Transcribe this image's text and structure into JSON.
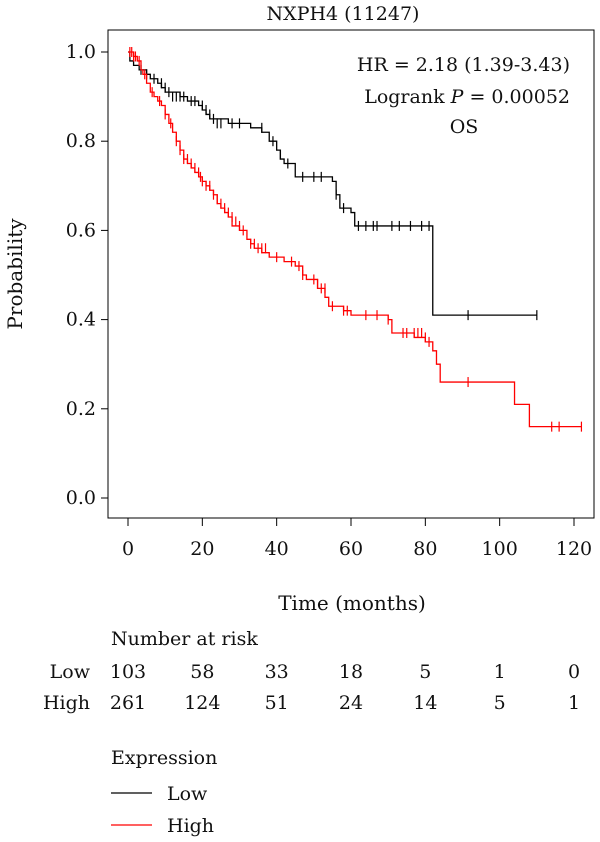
{
  "chart_data": {
    "type": "line",
    "title": "NXPH4 (11247)",
    "xlabel": "Time (months)",
    "ylabel": "Probability",
    "xlim": [
      0,
      125
    ],
    "ylim": [
      0,
      1.0
    ],
    "xticks": [
      0,
      20,
      40,
      60,
      80,
      100,
      120
    ],
    "yticks": [
      "0.0",
      "0.2",
      "0.4",
      "0.6",
      "0.8",
      "1.0"
    ],
    "grid": false,
    "annotations": {
      "hr": "HR = 2.18 (1.39-3.43)",
      "logrank_prefix": "Logrank ",
      "logrank_p": "P",
      "logrank_value": " = 0.00052",
      "endpoint": "OS"
    },
    "series": [
      {
        "name": "Low",
        "color": "#000000",
        "steps": [
          [
            0,
            1.0
          ],
          [
            0.5,
            0.98
          ],
          [
            1.5,
            0.97
          ],
          [
            3,
            0.96
          ],
          [
            5,
            0.95
          ],
          [
            6,
            0.94
          ],
          [
            8,
            0.93
          ],
          [
            9,
            0.92
          ],
          [
            10,
            0.91
          ],
          [
            14,
            0.9
          ],
          [
            16,
            0.89
          ],
          [
            19,
            0.88
          ],
          [
            20,
            0.87
          ],
          [
            21,
            0.86
          ],
          [
            22,
            0.85
          ],
          [
            27,
            0.84
          ],
          [
            33,
            0.83
          ],
          [
            36,
            0.82
          ],
          [
            38,
            0.8
          ],
          [
            40,
            0.78
          ],
          [
            41,
            0.76
          ],
          [
            42,
            0.75
          ],
          [
            45,
            0.72
          ],
          [
            55,
            0.71
          ],
          [
            56,
            0.68
          ],
          [
            57,
            0.65
          ],
          [
            60,
            0.64
          ],
          [
            61,
            0.61
          ],
          [
            82,
            0.41
          ],
          [
            110,
            0.41
          ]
        ],
        "censors": [
          [
            3.5,
            0.96
          ],
          [
            5,
            0.95
          ],
          [
            7,
            0.94
          ],
          [
            9,
            0.93
          ],
          [
            10,
            0.92
          ],
          [
            11,
            0.91
          ],
          [
            12,
            0.9
          ],
          [
            13,
            0.9
          ],
          [
            14,
            0.9
          ],
          [
            15,
            0.9
          ],
          [
            17,
            0.89
          ],
          [
            18,
            0.89
          ],
          [
            20,
            0.88
          ],
          [
            21,
            0.87
          ],
          [
            22,
            0.86
          ],
          [
            23,
            0.85
          ],
          [
            24,
            0.84
          ],
          [
            25,
            0.84
          ],
          [
            28,
            0.84
          ],
          [
            30,
            0.84
          ],
          [
            36,
            0.83
          ],
          [
            39,
            0.8
          ],
          [
            41,
            0.77
          ],
          [
            43,
            0.75
          ],
          [
            47,
            0.72
          ],
          [
            50,
            0.72
          ],
          [
            52,
            0.72
          ],
          [
            56,
            0.68
          ],
          [
            58,
            0.65
          ],
          [
            62,
            0.61
          ],
          [
            64,
            0.61
          ],
          [
            66,
            0.61
          ],
          [
            67,
            0.61
          ],
          [
            71,
            0.61
          ],
          [
            73,
            0.61
          ],
          [
            76,
            0.61
          ],
          [
            79,
            0.61
          ],
          [
            81,
            0.61
          ],
          [
            91.5,
            0.41
          ],
          [
            110,
            0.41
          ]
        ]
      },
      {
        "name": "High",
        "color": "#ff0000",
        "steps": [
          [
            0,
            1.0
          ],
          [
            1.5,
            0.99
          ],
          [
            2.5,
            0.98
          ],
          [
            3.5,
            0.96
          ],
          [
            4,
            0.95
          ],
          [
            5,
            0.93
          ],
          [
            6,
            0.91
          ],
          [
            7,
            0.9
          ],
          [
            8,
            0.89
          ],
          [
            9,
            0.88
          ],
          [
            10,
            0.86
          ],
          [
            11,
            0.84
          ],
          [
            12,
            0.82
          ],
          [
            13,
            0.8
          ],
          [
            14,
            0.78
          ],
          [
            15,
            0.76
          ],
          [
            16,
            0.75
          ],
          [
            17,
            0.74
          ],
          [
            18,
            0.73
          ],
          [
            19,
            0.72
          ],
          [
            20,
            0.71
          ],
          [
            21,
            0.7
          ],
          [
            22,
            0.69
          ],
          [
            23,
            0.68
          ],
          [
            24,
            0.66
          ],
          [
            25,
            0.65
          ],
          [
            26,
            0.64
          ],
          [
            27,
            0.63
          ],
          [
            28,
            0.61
          ],
          [
            30,
            0.6
          ],
          [
            32,
            0.58
          ],
          [
            33,
            0.57
          ],
          [
            34,
            0.56
          ],
          [
            36,
            0.55
          ],
          [
            38,
            0.54
          ],
          [
            42,
            0.53
          ],
          [
            45,
            0.52
          ],
          [
            47,
            0.5
          ],
          [
            48,
            0.49
          ],
          [
            51,
            0.47
          ],
          [
            53,
            0.45
          ],
          [
            54,
            0.43
          ],
          [
            58,
            0.42
          ],
          [
            60,
            0.41
          ],
          [
            70,
            0.4
          ],
          [
            71,
            0.37
          ],
          [
            77,
            0.36
          ],
          [
            80,
            0.35
          ],
          [
            82,
            0.33
          ],
          [
            83,
            0.3
          ],
          [
            84,
            0.26
          ],
          [
            104,
            0.21
          ],
          [
            108,
            0.16
          ],
          [
            122,
            0.16
          ]
        ],
        "censors": [
          [
            0.5,
            1.0
          ],
          [
            1,
            1.0
          ],
          [
            1.5,
            0.99
          ],
          [
            2,
            0.99
          ],
          [
            3,
            0.98
          ],
          [
            4.5,
            0.95
          ],
          [
            6.5,
            0.91
          ],
          [
            8.5,
            0.89
          ],
          [
            10,
            0.86
          ],
          [
            11.5,
            0.84
          ],
          [
            13,
            0.8
          ],
          [
            14,
            0.78
          ],
          [
            15,
            0.76
          ],
          [
            16,
            0.76
          ],
          [
            17,
            0.75
          ],
          [
            18,
            0.74
          ],
          [
            19,
            0.73
          ],
          [
            19.5,
            0.72
          ],
          [
            20,
            0.71
          ],
          [
            21,
            0.7
          ],
          [
            22,
            0.7
          ],
          [
            23,
            0.68
          ],
          [
            24,
            0.67
          ],
          [
            25,
            0.66
          ],
          [
            26,
            0.65
          ],
          [
            27,
            0.64
          ],
          [
            28,
            0.63
          ],
          [
            29,
            0.62
          ],
          [
            30,
            0.61
          ],
          [
            31,
            0.6
          ],
          [
            33,
            0.57
          ],
          [
            34,
            0.57
          ],
          [
            35,
            0.56
          ],
          [
            36,
            0.56
          ],
          [
            37,
            0.56
          ],
          [
            40,
            0.54
          ],
          [
            44,
            0.53
          ],
          [
            46,
            0.52
          ],
          [
            47,
            0.5
          ],
          [
            50,
            0.49
          ],
          [
            51,
            0.48
          ],
          [
            52,
            0.47
          ],
          [
            53,
            0.47
          ],
          [
            55,
            0.43
          ],
          [
            58,
            0.42
          ],
          [
            59,
            0.42
          ],
          [
            64,
            0.41
          ],
          [
            67,
            0.41
          ],
          [
            70,
            0.4
          ],
          [
            74,
            0.37
          ],
          [
            75,
            0.37
          ],
          [
            77,
            0.37
          ],
          [
            78,
            0.37
          ],
          [
            79,
            0.37
          ],
          [
            80,
            0.36
          ],
          [
            81,
            0.35
          ],
          [
            91.5,
            0.26
          ],
          [
            114,
            0.16
          ],
          [
            116,
            0.16
          ],
          [
            122,
            0.16
          ]
        ]
      }
    ],
    "risk_table": {
      "title": "Number at risk",
      "rows": [
        {
          "label": "Low",
          "values": [
            "103",
            "58",
            "33",
            "18",
            "5",
            "1",
            "0"
          ]
        },
        {
          "label": "High",
          "values": [
            "261",
            "124",
            "51",
            "24",
            "14",
            "5",
            "1"
          ]
        }
      ]
    },
    "legend": {
      "title": "Expression",
      "placement": "bottom-left",
      "items": [
        {
          "label": "Low",
          "color": "#000000"
        },
        {
          "label": "High",
          "color": "#ff0000"
        }
      ]
    }
  }
}
